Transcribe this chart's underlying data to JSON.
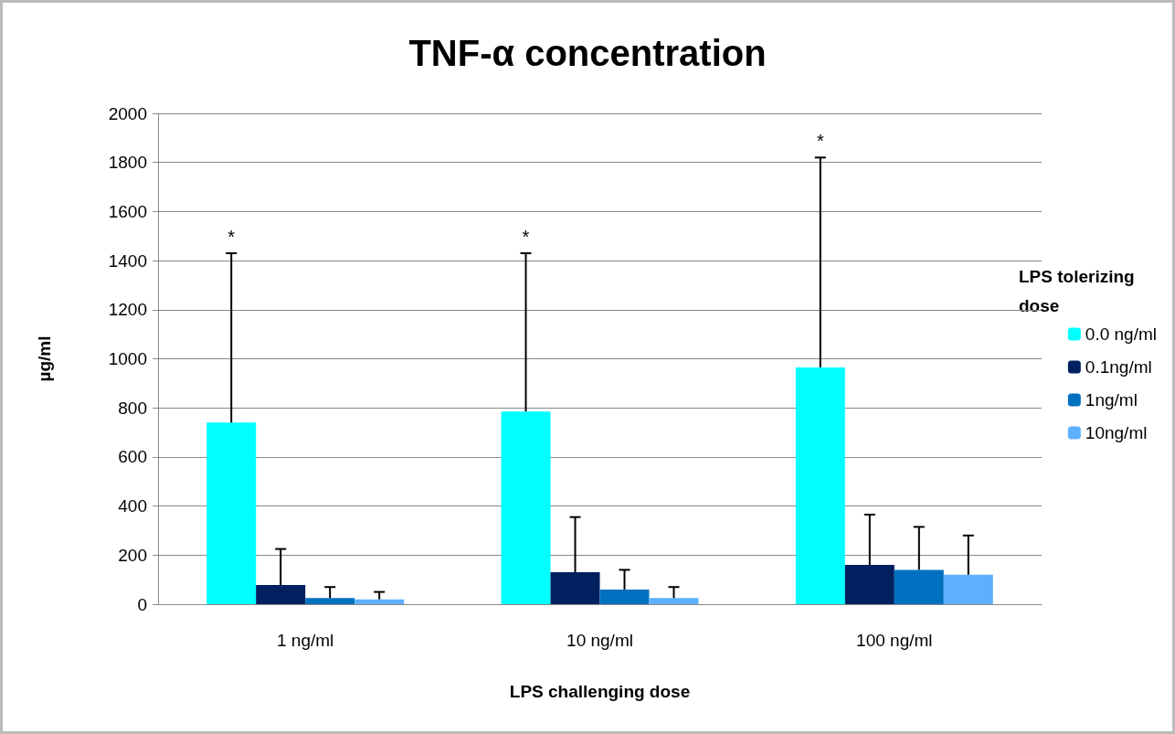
{
  "chart_data": {
    "type": "bar",
    "title": "TNF-α concentration",
    "xlabel": "LPS challenging dose",
    "ylabel": "µg/ml",
    "legend_title": "LPS tolerizing dose",
    "categories": [
      "1 ng/ml",
      "10 ng/ml",
      "100 ng/ml"
    ],
    "series": [
      {
        "name": "0.0 ng/ml",
        "color": "#00ffff",
        "values": [
          740,
          785,
          965
        ],
        "errors": [
          [
            740,
            1430
          ],
          [
            785,
            1430
          ],
          [
            965,
            1820
          ]
        ]
      },
      {
        "name": "0.1ng/ml",
        "color": "#002060",
        "values": [
          78,
          130,
          160
        ],
        "errors": [
          [
            78,
            225
          ],
          [
            130,
            355
          ],
          [
            160,
            365
          ]
        ]
      },
      {
        "name": "1ng/ml",
        "color": "#0070c0",
        "values": [
          25,
          60,
          140
        ],
        "errors": [
          [
            25,
            70
          ],
          [
            60,
            140
          ],
          [
            140,
            315
          ]
        ]
      },
      {
        "name": "10ng/ml",
        "color": "#5eb0ff",
        "values": [
          20,
          25,
          120
        ],
        "errors": [
          [
            20,
            50
          ],
          [
            25,
            70
          ],
          [
            120,
            280
          ]
        ]
      }
    ],
    "annotations": [
      "*",
      "*",
      "*"
    ],
    "ylim": [
      0,
      2000
    ],
    "yticks": [
      0,
      200,
      400,
      600,
      800,
      1000,
      1200,
      1400,
      1600,
      1800,
      2000
    ],
    "grid": "y",
    "legend": "right"
  }
}
